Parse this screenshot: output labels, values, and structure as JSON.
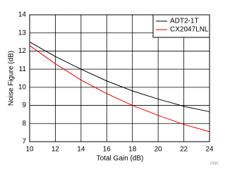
{
  "chart_data": {
    "type": "line",
    "x_label": "Total Gain (dB)",
    "y_label": "Noise Figure (dB)",
    "note": "D081",
    "x": [
      10,
      12,
      14,
      16,
      18,
      20,
      22,
      24
    ],
    "series": [
      {
        "name": "ADT2-1T",
        "color": "#000000",
        "values": [
          12.5,
          11.7,
          11.0,
          10.35,
          9.8,
          9.35,
          8.95,
          8.65
        ]
      },
      {
        "name": "CX2047LNL",
        "color": "#e00000",
        "values": [
          12.3,
          11.3,
          10.4,
          9.65,
          9.0,
          8.45,
          7.95,
          7.55
        ]
      }
    ],
    "xlim": [
      10,
      24
    ],
    "xticks": [
      10,
      12,
      14,
      16,
      18,
      20,
      22,
      24
    ],
    "ylim": [
      7,
      14
    ],
    "yticks": [
      7,
      8,
      9,
      10,
      11,
      12,
      13,
      14
    ],
    "grid": true,
    "legend": "top-right"
  }
}
